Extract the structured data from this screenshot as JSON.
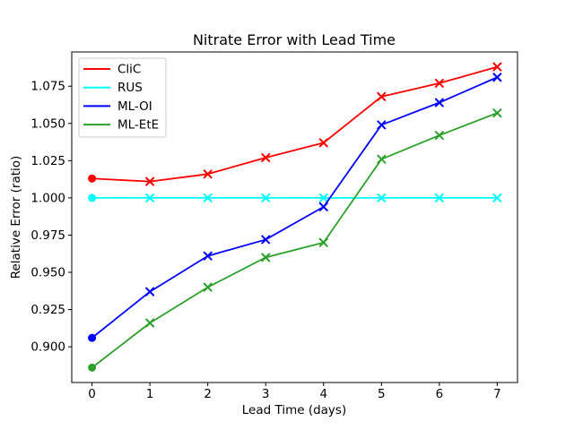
{
  "chart_data": {
    "type": "line",
    "title": "Nitrate Error with Lead Time",
    "xlabel": "Lead Time (days)",
    "ylabel": "Relative Error (ratio)",
    "x": [
      0,
      1,
      2,
      3,
      4,
      5,
      6,
      7
    ],
    "xtick_labels": [
      "0",
      "1",
      "2",
      "3",
      "4",
      "5",
      "6",
      "7"
    ],
    "yticks": [
      0.9,
      0.925,
      0.95,
      0.975,
      1.0,
      1.025,
      1.05,
      1.075
    ],
    "ytick_labels": [
      "0.900",
      "0.925",
      "0.950",
      "0.975",
      "1.000",
      "1.025",
      "1.050",
      "1.075"
    ],
    "xlim": [
      -0.35,
      7.35
    ],
    "ylim": [
      0.876,
      1.098
    ],
    "grid": false,
    "legend_position": "upper left",
    "marker_day0": "filled-circle",
    "marker_forecast": "x",
    "background_color": "#ffffff",
    "frame_color": "#000000",
    "legend_border_color": "#cccccc",
    "series": [
      {
        "name": "CliC",
        "color": "#ff0000",
        "values": [
          1.013,
          1.011,
          1.016,
          1.027,
          1.037,
          1.068,
          1.077,
          1.088
        ]
      },
      {
        "name": "RUS",
        "color": "#00ffff",
        "values": [
          1.0,
          1.0,
          1.0,
          1.0,
          1.0,
          1.0,
          1.0,
          1.0
        ]
      },
      {
        "name": "ML-OI",
        "color": "#0000ff",
        "values": [
          0.906,
          0.937,
          0.961,
          0.972,
          0.994,
          1.049,
          1.064,
          1.081
        ]
      },
      {
        "name": "ML-EtE",
        "color": "#2ca02c",
        "values": [
          0.886,
          0.916,
          0.94,
          0.96,
          0.97,
          1.026,
          1.042,
          1.057
        ]
      }
    ]
  }
}
